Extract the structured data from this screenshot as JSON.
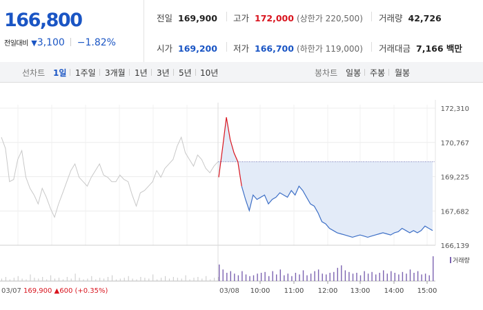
{
  "quote": {
    "current_price": "166,800",
    "change_label": "전일대비",
    "change_icon": "down-triangle-icon",
    "change_value": "3,100",
    "change_rate": "−1.82%",
    "stats": {
      "prev_close": {
        "label": "전일",
        "value": "169,900"
      },
      "high": {
        "label": "고가",
        "value": "172,000",
        "paren": "(상한가 220,500)"
      },
      "volume": {
        "label": "거래량",
        "value": "42,726"
      },
      "open": {
        "label": "시가",
        "value": "169,200"
      },
      "low": {
        "label": "저가",
        "value": "166,700",
        "paren": "(하한가 119,000)"
      },
      "trade_value": {
        "label": "거래대금",
        "value": "7,166 백만"
      }
    }
  },
  "tabs": {
    "line_label": "선차트",
    "line": [
      "1일",
      "1주일",
      "3개월",
      "1년",
      "3년",
      "5년",
      "10년"
    ],
    "line_active": "1일",
    "candle_label": "봉차트",
    "candle": [
      "일봉",
      "주봉",
      "월봉"
    ]
  },
  "chart_data": {
    "type": "line",
    "y_axis_ticks": [
      "172,310",
      "170,767",
      "169,225",
      "167,682",
      "166,139"
    ],
    "ylim": [
      166139,
      172310
    ],
    "prev_day": {
      "date": "03/07",
      "close": "169,900",
      "change": "▲600",
      "change_rate": "(+0.35%)",
      "color": "#c8c8c8",
      "values": [
        171000,
        170500,
        169000,
        169100,
        170000,
        170400,
        169200,
        168700,
        168400,
        168000,
        168700,
        168300,
        167800,
        167400,
        168000,
        168500,
        169000,
        169500,
        169800,
        169200,
        169000,
        168800,
        169200,
        169500,
        169800,
        169300,
        169200,
        169000,
        169000,
        169300,
        169100,
        169000,
        168400,
        167900,
        168500,
        168600,
        168800,
        169000,
        169500,
        169200,
        169600,
        169800,
        170000,
        170600,
        171000,
        170300,
        170000,
        169700,
        170200,
        170000,
        169600,
        169400,
        169700,
        169900
      ]
    },
    "today": {
      "date": "03/08",
      "color": "#3d6fc6",
      "up_color": "#d9141e",
      "baseline": 169900,
      "x_ticks": [
        "10:00",
        "11:00",
        "12:00",
        "13:00",
        "14:00",
        "15:00"
      ],
      "values": [
        169200,
        170500,
        171900,
        170900,
        170300,
        169900,
        168800,
        168200,
        167700,
        168400,
        168200,
        168300,
        168400,
        168000,
        168200,
        168300,
        168500,
        168400,
        168300,
        168600,
        168400,
        168800,
        168600,
        168300,
        168000,
        167900,
        167600,
        167200,
        167100,
        166900,
        166800,
        166700,
        166650,
        166600,
        166550,
        166500,
        166550,
        166600,
        166550,
        166500,
        166550,
        166600,
        166650,
        166700,
        166650,
        166600,
        166700,
        166750,
        166900,
        166800,
        166700,
        166800,
        166700,
        166800,
        167000,
        166900,
        166800
      ]
    },
    "volume": {
      "label": "거래량",
      "prev": [
        3,
        5,
        2,
        4,
        6,
        3,
        2,
        8,
        4,
        3,
        5,
        2,
        7,
        3,
        4,
        2,
        5,
        3,
        9,
        4,
        2,
        3,
        6,
        2,
        4,
        3,
        5,
        7,
        2,
        3,
        4,
        6,
        3,
        2,
        5,
        4,
        3,
        8,
        2,
        4,
        6,
        3,
        5,
        4,
        3,
        7,
        2,
        4,
        5,
        3,
        6,
        2,
        4,
        5
      ],
      "today": [
        20,
        14,
        10,
        12,
        9,
        7,
        12,
        8,
        6,
        7,
        9,
        10,
        11,
        6,
        12,
        8,
        14,
        7,
        9,
        6,
        10,
        8,
        13,
        7,
        9,
        12,
        14,
        9,
        8,
        10,
        11,
        16,
        19,
        13,
        11,
        9,
        10,
        7,
        12,
        9,
        11,
        8,
        10,
        13,
        9,
        12,
        10,
        8,
        11,
        9,
        14,
        10,
        12,
        8,
        9,
        7,
        30
      ]
    }
  }
}
